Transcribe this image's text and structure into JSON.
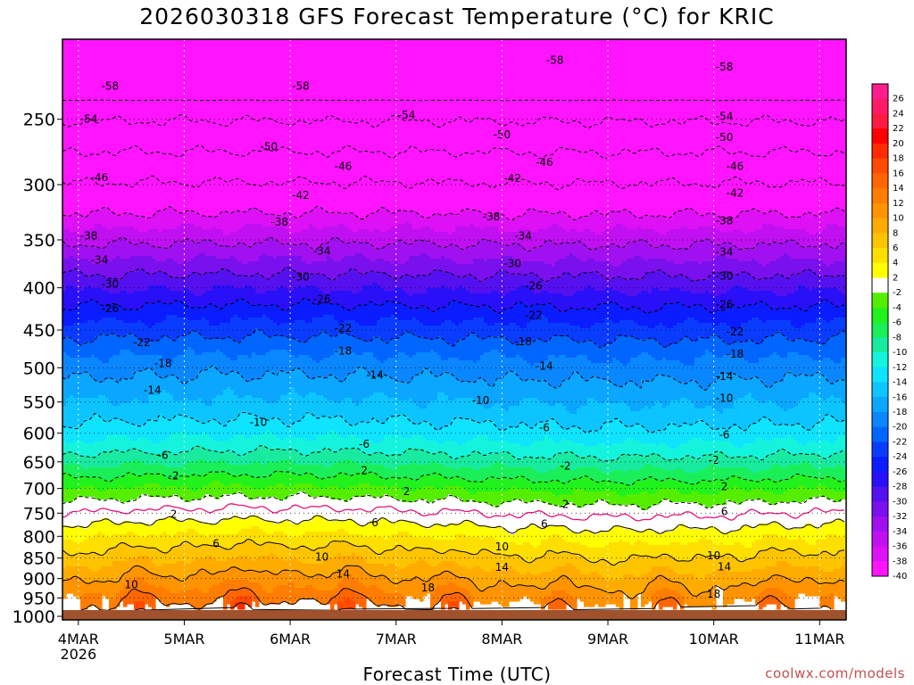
{
  "chart_data": {
    "type": "heatmap",
    "title": "2026030318 GFS Forecast Temperature (°C) for KRIC",
    "xlabel": "Forecast Time (UTC)",
    "ylabel": "",
    "credit": "coolwx.com/models",
    "x_ticks": [
      {
        "label": "4MAR",
        "sublabel": "2026",
        "day": 0
      },
      {
        "label": "5MAR",
        "day": 1
      },
      {
        "label": "6MAR",
        "day": 2
      },
      {
        "label": "7MAR",
        "day": 3
      },
      {
        "label": "8MAR",
        "day": 4
      },
      {
        "label": "9MAR",
        "day": 5
      },
      {
        "label": "10MAR",
        "day": 6
      },
      {
        "label": "11MAR",
        "day": 7
      }
    ],
    "x_range_days": [
      -0.15,
      7.25
    ],
    "y_ticks": [
      250,
      300,
      350,
      400,
      450,
      500,
      550,
      600,
      650,
      700,
      750,
      800,
      850,
      900,
      950,
      1000
    ],
    "y_range_hpa": [
      200,
      1010
    ],
    "y_scale": "log",
    "colorbar_labels": [
      26,
      24,
      22,
      20,
      18,
      16,
      14,
      12,
      10,
      8,
      6,
      4,
      2,
      -2,
      -4,
      -6,
      -8,
      -10,
      -12,
      -14,
      -16,
      -18,
      -20,
      -22,
      -24,
      -26,
      -28,
      -30,
      -32,
      -34,
      -36,
      -38,
      -40
    ],
    "colorbar_colors": [
      "#ff1c8c",
      "#ff1a66",
      "#ff1a40",
      "#ff0000",
      "#ff2a00",
      "#ff4a00",
      "#ff6600",
      "#ff7d00",
      "#ff9400",
      "#ffab00",
      "#ffc400",
      "#ffdf00",
      "#ffff00",
      "#ffffff",
      "#56ee00",
      "#21f21c",
      "#1aef5a",
      "#18eba0",
      "#14f4dd",
      "#0ee3ff",
      "#0cc4ff",
      "#0aa6ff",
      "#0a86ff",
      "#0066ff",
      "#0a3cff",
      "#0b1cff",
      "#2a10f8",
      "#5510f0",
      "#7a10ee",
      "#a010f0",
      "#c010f2",
      "#de10f5",
      "#ff14ff"
    ],
    "contour_levels": [
      -58,
      -54,
      -50,
      -46,
      -42,
      -38,
      -34,
      -30,
      -26,
      -22,
      -18,
      -14,
      -10,
      -6,
      -2,
      2,
      6,
      10,
      14,
      18
    ],
    "freezing_line_color": "#e8137a",
    "contour_labels": [
      {
        "value": -58,
        "points": [
          [
            0.3,
            228
          ],
          [
            2.1,
            228
          ],
          [
            4.5,
            212
          ],
          [
            6.1,
            216
          ]
        ]
      },
      {
        "value": -54,
        "points": [
          [
            0.1,
            250
          ],
          [
            3.1,
            247
          ],
          [
            6.1,
            248
          ]
        ]
      },
      {
        "value": -50,
        "points": [
          [
            1.8,
            270
          ],
          [
            4.0,
            261
          ],
          [
            6.1,
            263
          ]
        ]
      },
      {
        "value": -46,
        "points": [
          [
            0.2,
            294
          ],
          [
            2.5,
            285
          ],
          [
            4.4,
            282
          ],
          [
            6.2,
            285
          ]
        ]
      },
      {
        "value": -42,
        "points": [
          [
            2.1,
            309
          ],
          [
            4.1,
            295
          ],
          [
            6.2,
            307
          ]
        ]
      },
      {
        "value": -38,
        "points": [
          [
            0.1,
            346
          ],
          [
            1.9,
            333
          ],
          [
            3.9,
            328
          ],
          [
            6.1,
            332
          ]
        ]
      },
      {
        "value": -34,
        "points": [
          [
            0.2,
            370
          ],
          [
            2.3,
            361
          ],
          [
            4.2,
            346
          ],
          [
            6.1,
            362
          ]
        ]
      },
      {
        "value": -30,
        "points": [
          [
            0.3,
            396
          ],
          [
            2.1,
            388
          ],
          [
            4.1,
            374
          ],
          [
            6.1,
            387
          ]
        ]
      },
      {
        "value": -26,
        "points": [
          [
            0.3,
            424
          ],
          [
            2.3,
            413
          ],
          [
            4.3,
            398
          ],
          [
            6.1,
            419
          ]
        ]
      },
      {
        "value": -22,
        "points": [
          [
            0.6,
            466
          ],
          [
            2.5,
            448
          ],
          [
            4.3,
            432
          ],
          [
            6.2,
            452
          ]
        ]
      },
      {
        "value": -18,
        "points": [
          [
            0.8,
            494
          ],
          [
            2.5,
            477
          ],
          [
            4.2,
            465
          ],
          [
            6.2,
            481
          ]
        ]
      },
      {
        "value": -14,
        "points": [
          [
            0.7,
            532
          ],
          [
            2.8,
            510
          ],
          [
            4.4,
            498
          ],
          [
            6.1,
            512
          ]
        ]
      },
      {
        "value": -10,
        "points": [
          [
            1.7,
            582
          ],
          [
            3.8,
            548
          ],
          [
            6.1,
            544
          ]
        ]
      },
      {
        "value": -6,
        "points": [
          [
            0.8,
            638
          ],
          [
            2.7,
            619
          ],
          [
            4.4,
            591
          ],
          [
            6.1,
            603
          ]
        ]
      },
      {
        "value": -2,
        "points": [
          [
            0.9,
            676
          ],
          [
            4.6,
            658
          ],
          [
            6.0,
            647
          ]
        ]
      },
      {
        "value": 2,
        "points": [
          [
            0.9,
            752
          ],
          [
            2.7,
            666
          ],
          [
            3.1,
            706
          ],
          [
            4.6,
            732
          ],
          [
            6.1,
            696
          ]
        ]
      },
      {
        "value": 6,
        "points": [
          [
            1.3,
            817
          ],
          [
            2.8,
            770
          ],
          [
            4.4,
            773
          ],
          [
            6.1,
            747
          ]
        ]
      },
      {
        "value": 10,
        "points": [
          [
            0.5,
            915
          ],
          [
            2.3,
            848
          ],
          [
            4.0,
            824
          ],
          [
            6.0,
            844
          ]
        ]
      },
      {
        "value": 14,
        "points": [
          [
            2.5,
            889
          ],
          [
            4.0,
            872
          ],
          [
            6.1,
            871
          ]
        ]
      },
      {
        "value": 18,
        "points": [
          [
            3.3,
            924
          ],
          [
            6.0,
            940
          ]
        ]
      }
    ]
  }
}
